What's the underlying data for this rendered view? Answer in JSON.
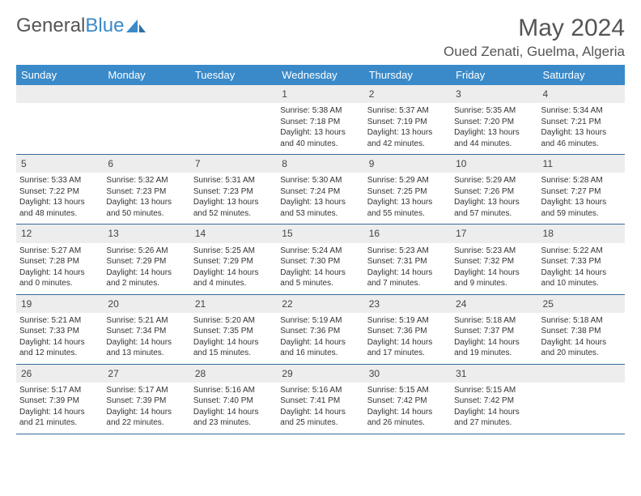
{
  "logo": {
    "part1": "General",
    "part2": "Blue"
  },
  "title": "May 2024",
  "location": "Oued Zenati, Guelma, Algeria",
  "day_headers": [
    "Sunday",
    "Monday",
    "Tuesday",
    "Wednesday",
    "Thursday",
    "Friday",
    "Saturday"
  ],
  "colors": {
    "header_bg": "#3a8ac9",
    "header_text": "#ffffff",
    "daynum_bg": "#ededed",
    "border": "#3a6a9a",
    "logo_blue": "#3a8ac9"
  },
  "weeks": [
    {
      "nums": [
        "",
        "",
        "",
        "1",
        "2",
        "3",
        "4"
      ],
      "cells": [
        [],
        [],
        [],
        [
          "Sunrise: 5:38 AM",
          "Sunset: 7:18 PM",
          "Daylight: 13 hours",
          "and 40 minutes."
        ],
        [
          "Sunrise: 5:37 AM",
          "Sunset: 7:19 PM",
          "Daylight: 13 hours",
          "and 42 minutes."
        ],
        [
          "Sunrise: 5:35 AM",
          "Sunset: 7:20 PM",
          "Daylight: 13 hours",
          "and 44 minutes."
        ],
        [
          "Sunrise: 5:34 AM",
          "Sunset: 7:21 PM",
          "Daylight: 13 hours",
          "and 46 minutes."
        ]
      ]
    },
    {
      "nums": [
        "5",
        "6",
        "7",
        "8",
        "9",
        "10",
        "11"
      ],
      "cells": [
        [
          "Sunrise: 5:33 AM",
          "Sunset: 7:22 PM",
          "Daylight: 13 hours",
          "and 48 minutes."
        ],
        [
          "Sunrise: 5:32 AM",
          "Sunset: 7:23 PM",
          "Daylight: 13 hours",
          "and 50 minutes."
        ],
        [
          "Sunrise: 5:31 AM",
          "Sunset: 7:23 PM",
          "Daylight: 13 hours",
          "and 52 minutes."
        ],
        [
          "Sunrise: 5:30 AM",
          "Sunset: 7:24 PM",
          "Daylight: 13 hours",
          "and 53 minutes."
        ],
        [
          "Sunrise: 5:29 AM",
          "Sunset: 7:25 PM",
          "Daylight: 13 hours",
          "and 55 minutes."
        ],
        [
          "Sunrise: 5:29 AM",
          "Sunset: 7:26 PM",
          "Daylight: 13 hours",
          "and 57 minutes."
        ],
        [
          "Sunrise: 5:28 AM",
          "Sunset: 7:27 PM",
          "Daylight: 13 hours",
          "and 59 minutes."
        ]
      ]
    },
    {
      "nums": [
        "12",
        "13",
        "14",
        "15",
        "16",
        "17",
        "18"
      ],
      "cells": [
        [
          "Sunrise: 5:27 AM",
          "Sunset: 7:28 PM",
          "Daylight: 14 hours",
          "and 0 minutes."
        ],
        [
          "Sunrise: 5:26 AM",
          "Sunset: 7:29 PM",
          "Daylight: 14 hours",
          "and 2 minutes."
        ],
        [
          "Sunrise: 5:25 AM",
          "Sunset: 7:29 PM",
          "Daylight: 14 hours",
          "and 4 minutes."
        ],
        [
          "Sunrise: 5:24 AM",
          "Sunset: 7:30 PM",
          "Daylight: 14 hours",
          "and 5 minutes."
        ],
        [
          "Sunrise: 5:23 AM",
          "Sunset: 7:31 PM",
          "Daylight: 14 hours",
          "and 7 minutes."
        ],
        [
          "Sunrise: 5:23 AM",
          "Sunset: 7:32 PM",
          "Daylight: 14 hours",
          "and 9 minutes."
        ],
        [
          "Sunrise: 5:22 AM",
          "Sunset: 7:33 PM",
          "Daylight: 14 hours",
          "and 10 minutes."
        ]
      ]
    },
    {
      "nums": [
        "19",
        "20",
        "21",
        "22",
        "23",
        "24",
        "25"
      ],
      "cells": [
        [
          "Sunrise: 5:21 AM",
          "Sunset: 7:33 PM",
          "Daylight: 14 hours",
          "and 12 minutes."
        ],
        [
          "Sunrise: 5:21 AM",
          "Sunset: 7:34 PM",
          "Daylight: 14 hours",
          "and 13 minutes."
        ],
        [
          "Sunrise: 5:20 AM",
          "Sunset: 7:35 PM",
          "Daylight: 14 hours",
          "and 15 minutes."
        ],
        [
          "Sunrise: 5:19 AM",
          "Sunset: 7:36 PM",
          "Daylight: 14 hours",
          "and 16 minutes."
        ],
        [
          "Sunrise: 5:19 AM",
          "Sunset: 7:36 PM",
          "Daylight: 14 hours",
          "and 17 minutes."
        ],
        [
          "Sunrise: 5:18 AM",
          "Sunset: 7:37 PM",
          "Daylight: 14 hours",
          "and 19 minutes."
        ],
        [
          "Sunrise: 5:18 AM",
          "Sunset: 7:38 PM",
          "Daylight: 14 hours",
          "and 20 minutes."
        ]
      ]
    },
    {
      "nums": [
        "26",
        "27",
        "28",
        "29",
        "30",
        "31",
        ""
      ],
      "cells": [
        [
          "Sunrise: 5:17 AM",
          "Sunset: 7:39 PM",
          "Daylight: 14 hours",
          "and 21 minutes."
        ],
        [
          "Sunrise: 5:17 AM",
          "Sunset: 7:39 PM",
          "Daylight: 14 hours",
          "and 22 minutes."
        ],
        [
          "Sunrise: 5:16 AM",
          "Sunset: 7:40 PM",
          "Daylight: 14 hours",
          "and 23 minutes."
        ],
        [
          "Sunrise: 5:16 AM",
          "Sunset: 7:41 PM",
          "Daylight: 14 hours",
          "and 25 minutes."
        ],
        [
          "Sunrise: 5:15 AM",
          "Sunset: 7:42 PM",
          "Daylight: 14 hours",
          "and 26 minutes."
        ],
        [
          "Sunrise: 5:15 AM",
          "Sunset: 7:42 PM",
          "Daylight: 14 hours",
          "and 27 minutes."
        ],
        []
      ]
    }
  ]
}
